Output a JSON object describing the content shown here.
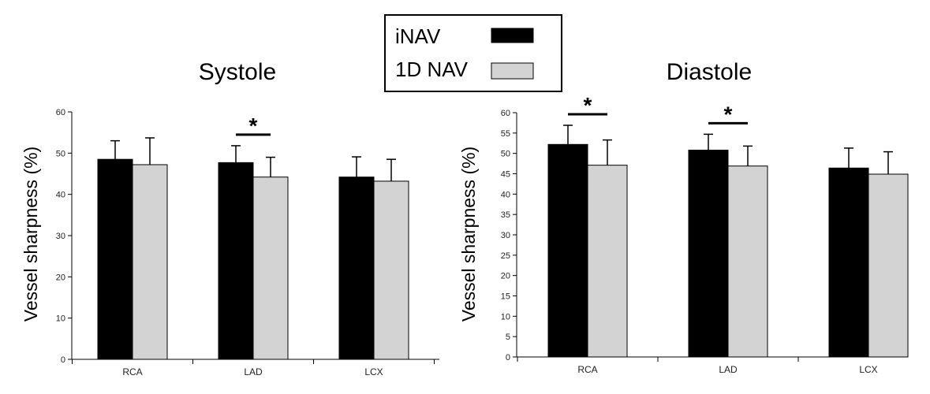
{
  "legend": {
    "items": [
      {
        "label": "iNAV",
        "color": "#000000"
      },
      {
        "label": "1D NAV",
        "color": "#d3d3d3"
      }
    ]
  },
  "chart_data": [
    {
      "type": "bar",
      "title": "Systole",
      "xlabel": "",
      "ylabel": "Vessel sharpness (%)",
      "categories": [
        "RCA",
        "LAD",
        "LCX"
      ],
      "ylim": [
        0,
        60
      ],
      "yticks": [
        0,
        10,
        20,
        30,
        40,
        50,
        60
      ],
      "series": [
        {
          "name": "iNAV",
          "values": [
            48.5,
            47.7,
            44.2
          ],
          "errors": [
            4.5,
            4.1,
            4.9
          ]
        },
        {
          "name": "1D NAV",
          "values": [
            47.2,
            44.2,
            43.2
          ],
          "errors": [
            6.5,
            4.8,
            5.3
          ]
        }
      ],
      "significance": [
        {
          "category": "LAD",
          "label": "*"
        }
      ]
    },
    {
      "type": "bar",
      "title": "Diastole",
      "xlabel": "",
      "ylabel": "Vessel sharpness (%)",
      "categories": [
        "RCA",
        "LAD",
        "LCX"
      ],
      "ylim": [
        0,
        60
      ],
      "yticks": [
        0,
        5,
        10,
        15,
        20,
        25,
        30,
        35,
        40,
        45,
        50,
        55,
        60
      ],
      "series": [
        {
          "name": "iNAV",
          "values": [
            52.2,
            50.8,
            46.4
          ],
          "errors": [
            4.7,
            3.9,
            4.9
          ]
        },
        {
          "name": "1D NAV",
          "values": [
            47.1,
            46.9,
            44.9
          ],
          "errors": [
            6.2,
            4.9,
            5.5
          ]
        }
      ],
      "significance": [
        {
          "category": "RCA",
          "label": "*"
        },
        {
          "category": "LAD",
          "label": "*"
        }
      ]
    }
  ]
}
